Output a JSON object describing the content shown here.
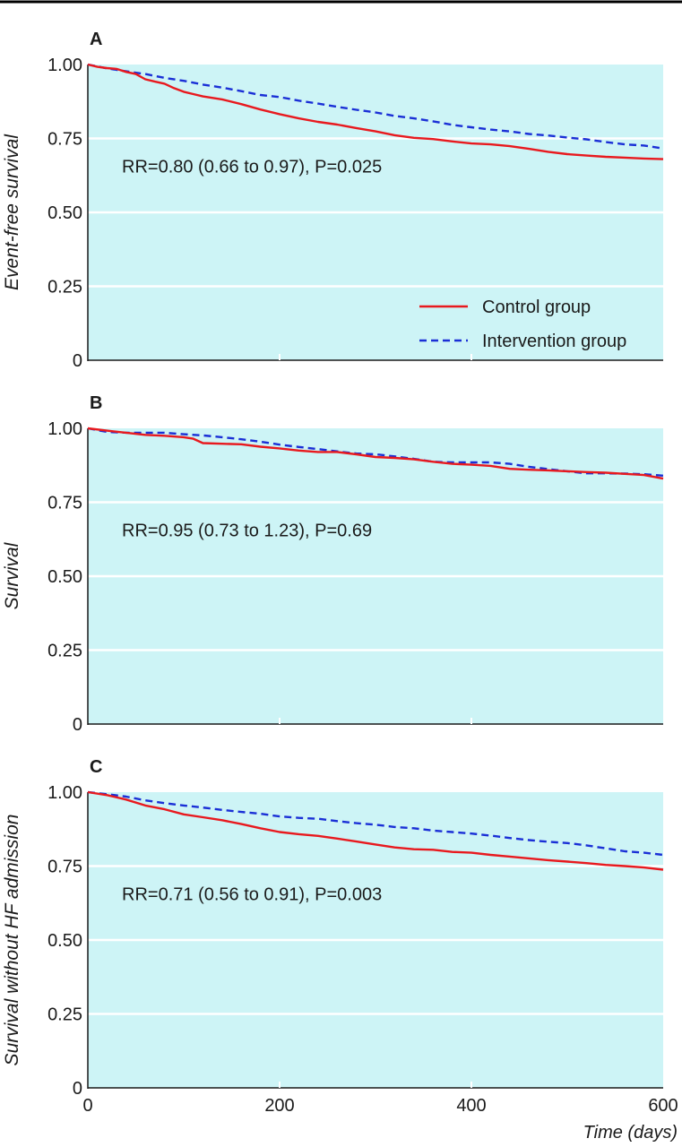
{
  "colors": {
    "plot_bg": "#cdf4f6",
    "grid": "#ffffff",
    "control": "#e8191e",
    "intervention": "#1a2fd6",
    "text": "#1a1a1a"
  },
  "chart_data": [
    {
      "type": "line",
      "panel_label": "A",
      "ylabel": "Event-free survival",
      "xlabel": "",
      "annotation": "RR=0.80 (0.66 to 0.97), P=0.025",
      "xlim": [
        0,
        600
      ],
      "ylim": [
        0,
        1
      ],
      "yticks": [
        "0",
        "0.25",
        "0.50",
        "0.75",
        "1.00"
      ],
      "xticks": [],
      "grid": true,
      "legend": {
        "position": "bottom-right",
        "entries": [
          "Control group",
          "Intervention group"
        ]
      },
      "series": [
        {
          "name": "Control group",
          "style": "solid",
          "x": [
            0,
            10,
            20,
            30,
            40,
            50,
            60,
            70,
            80,
            90,
            100,
            110,
            120,
            140,
            160,
            180,
            200,
            220,
            240,
            260,
            280,
            300,
            320,
            340,
            360,
            380,
            400,
            420,
            440,
            460,
            480,
            500,
            520,
            540,
            560,
            580,
            600
          ],
          "y": [
            1.0,
            0.992,
            0.988,
            0.985,
            0.975,
            0.968,
            0.95,
            0.942,
            0.935,
            0.92,
            0.908,
            0.9,
            0.892,
            0.882,
            0.866,
            0.848,
            0.832,
            0.818,
            0.806,
            0.797,
            0.785,
            0.774,
            0.761,
            0.752,
            0.748,
            0.74,
            0.733,
            0.73,
            0.724,
            0.715,
            0.705,
            0.697,
            0.692,
            0.688,
            0.685,
            0.682,
            0.68
          ]
        },
        {
          "name": "Intervention group",
          "style": "dashed",
          "x": [
            0,
            20,
            40,
            60,
            80,
            100,
            120,
            140,
            160,
            180,
            200,
            220,
            240,
            260,
            280,
            300,
            320,
            340,
            360,
            380,
            400,
            420,
            440,
            460,
            480,
            500,
            520,
            540,
            560,
            580,
            600
          ],
          "y": [
            1.0,
            0.987,
            0.977,
            0.968,
            0.955,
            0.945,
            0.932,
            0.922,
            0.91,
            0.897,
            0.89,
            0.878,
            0.868,
            0.857,
            0.847,
            0.838,
            0.826,
            0.818,
            0.808,
            0.796,
            0.788,
            0.78,
            0.774,
            0.765,
            0.76,
            0.753,
            0.747,
            0.738,
            0.73,
            0.726,
            0.716
          ]
        }
      ]
    },
    {
      "type": "line",
      "panel_label": "B",
      "ylabel": "Survival",
      "xlabel": "",
      "annotation": "RR=0.95 (0.73 to 1.23), P=0.69",
      "xlim": [
        0,
        600
      ],
      "ylim": [
        0,
        1
      ],
      "yticks": [
        "0",
        "0.25",
        "0.50",
        "0.75",
        "1.00"
      ],
      "xticks": [],
      "grid": true,
      "series": [
        {
          "name": "Control group",
          "style": "solid",
          "x": [
            0,
            20,
            40,
            60,
            80,
            100,
            110,
            120,
            140,
            160,
            180,
            200,
            220,
            240,
            260,
            280,
            300,
            320,
            340,
            360,
            380,
            400,
            420,
            440,
            460,
            480,
            500,
            520,
            540,
            560,
            580,
            600
          ],
          "y": [
            1.0,
            0.992,
            0.985,
            0.978,
            0.975,
            0.97,
            0.965,
            0.95,
            0.948,
            0.946,
            0.938,
            0.932,
            0.925,
            0.92,
            0.92,
            0.912,
            0.903,
            0.9,
            0.895,
            0.887,
            0.88,
            0.877,
            0.873,
            0.863,
            0.86,
            0.858,
            0.855,
            0.852,
            0.85,
            0.846,
            0.842,
            0.83
          ]
        },
        {
          "name": "Intervention group",
          "style": "dashed",
          "x": [
            0,
            20,
            40,
            60,
            80,
            100,
            120,
            140,
            160,
            180,
            200,
            220,
            240,
            260,
            280,
            300,
            320,
            340,
            360,
            380,
            400,
            420,
            440,
            460,
            480,
            500,
            520,
            540,
            560,
            580,
            600
          ],
          "y": [
            1.0,
            0.988,
            0.985,
            0.985,
            0.985,
            0.98,
            0.976,
            0.97,
            0.963,
            0.955,
            0.945,
            0.937,
            0.93,
            0.922,
            0.915,
            0.912,
            0.905,
            0.897,
            0.887,
            0.885,
            0.885,
            0.885,
            0.88,
            0.87,
            0.862,
            0.855,
            0.848,
            0.848,
            0.847,
            0.845,
            0.84
          ]
        }
      ]
    },
    {
      "type": "line",
      "panel_label": "C",
      "ylabel": "Survival without HF admission",
      "xlabel": "Time (days)",
      "annotation": "RR=0.71 (0.56 to 0.91), P=0.003",
      "xlim": [
        0,
        600
      ],
      "ylim": [
        0,
        1
      ],
      "yticks": [
        "0",
        "0.25",
        "0.50",
        "0.75",
        "1.00"
      ],
      "xticks": [
        "0",
        "200",
        "400",
        "600"
      ],
      "grid": true,
      "series": [
        {
          "name": "Control group",
          "style": "solid",
          "x": [
            0,
            20,
            40,
            60,
            80,
            100,
            120,
            140,
            160,
            180,
            200,
            220,
            240,
            260,
            280,
            300,
            320,
            340,
            360,
            380,
            400,
            420,
            440,
            460,
            480,
            500,
            520,
            540,
            560,
            580,
            600
          ],
          "y": [
            1.0,
            0.99,
            0.975,
            0.955,
            0.942,
            0.925,
            0.915,
            0.905,
            0.892,
            0.878,
            0.865,
            0.858,
            0.852,
            0.843,
            0.833,
            0.823,
            0.813,
            0.807,
            0.805,
            0.798,
            0.795,
            0.788,
            0.782,
            0.776,
            0.77,
            0.765,
            0.76,
            0.754,
            0.75,
            0.745,
            0.738
          ]
        },
        {
          "name": "Intervention group",
          "style": "dashed",
          "x": [
            0,
            20,
            40,
            60,
            80,
            100,
            120,
            140,
            160,
            180,
            200,
            220,
            240,
            260,
            280,
            300,
            320,
            340,
            360,
            380,
            400,
            420,
            440,
            460,
            480,
            500,
            520,
            540,
            560,
            580,
            600
          ],
          "y": [
            1.0,
            0.993,
            0.985,
            0.972,
            0.963,
            0.955,
            0.948,
            0.94,
            0.933,
            0.927,
            0.918,
            0.913,
            0.91,
            0.902,
            0.895,
            0.89,
            0.882,
            0.878,
            0.87,
            0.865,
            0.86,
            0.853,
            0.845,
            0.838,
            0.832,
            0.828,
            0.82,
            0.81,
            0.8,
            0.795,
            0.788
          ]
        }
      ]
    }
  ]
}
